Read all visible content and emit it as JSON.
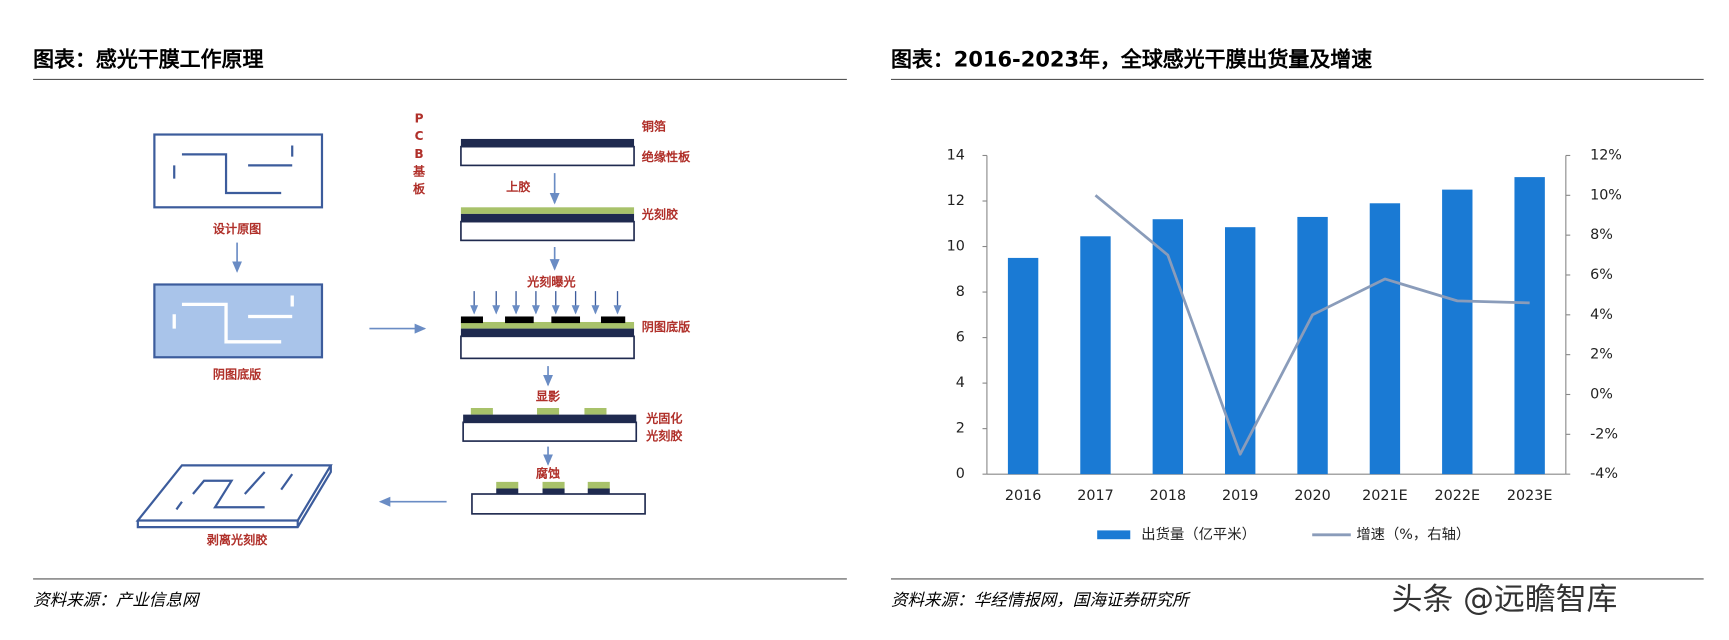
{
  "diagram": {
    "title": "图表：感光干膜工作原理",
    "design_label": "设计原图",
    "mask_label": "阴图底版",
    "strip_label": "剥离光刻胶",
    "pcb_label": [
      "P",
      "C",
      "B",
      "基",
      "板"
    ],
    "copper_label": "铜箔",
    "insulator_label": "绝缘性板",
    "coat_label": "上胶",
    "resist_label": "光刻胶",
    "expose_label": "光刻曝光",
    "mask2_label": "阴图底版",
    "develop_label": "显影",
    "cured_label_1": "光固化",
    "cured_label_2": "光刻胶",
    "etch_label": "腐蚀",
    "source": "资料来源：产业信息网"
  },
  "chart_data": {
    "type": "bar",
    "title": "图表：2016-2023年，全球感光干膜出货量及增速",
    "categories": [
      "2016",
      "2017",
      "2018",
      "2019",
      "2020",
      "2021E",
      "2022E",
      "2023E"
    ],
    "series": [
      {
        "name": "出货量（亿平米）",
        "color": "#1a7ad4",
        "type": "bar",
        "values": [
          9.5,
          10.45,
          11.2,
          10.85,
          11.3,
          11.9,
          12.5,
          13.05
        ]
      },
      {
        "name": "增速（%，右轴）",
        "color": "#8a9cba",
        "type": "line",
        "axis": "y2",
        "values": [
          null,
          10,
          7,
          -3,
          4,
          5.8,
          4.7,
          4.6
        ]
      }
    ],
    "ylim": [
      0,
      14
    ],
    "yticks": [
      0,
      2,
      4,
      6,
      8,
      10,
      12,
      14
    ],
    "y2lim": [
      -4,
      12
    ],
    "y2ticks": [
      {
        "value": -4,
        "label": "-4%"
      },
      {
        "value": -2,
        "label": "-2%"
      },
      {
        "value": 0,
        "label": "0%"
      },
      {
        "value": 2,
        "label": "2%"
      },
      {
        "value": 4,
        "label": "4%"
      },
      {
        "value": 6,
        "label": "6%"
      },
      {
        "value": 8,
        "label": "8%"
      },
      {
        "value": 10,
        "label": "10%"
      },
      {
        "value": 12,
        "label": "12%"
      }
    ],
    "source": "资料来源：华经情报网，国海证券研究所"
  },
  "watermark": "头条 @远瞻智库"
}
